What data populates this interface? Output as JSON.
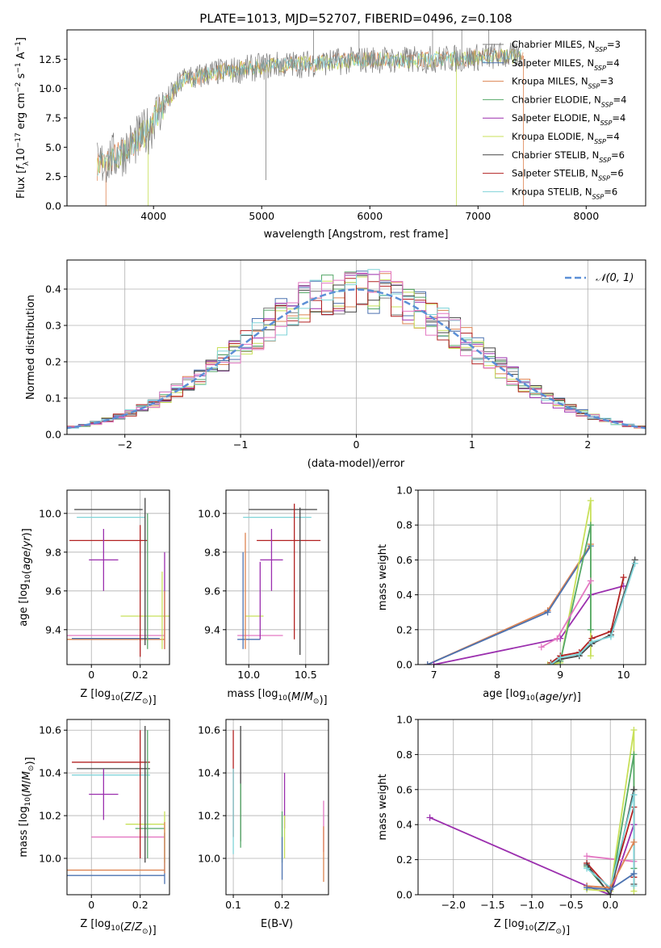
{
  "colors": {
    "chabrier_miles": "#7f7f7f",
    "salpeter_miles": "#4c72b0",
    "kroupa_miles": "#dd8452",
    "chabrier_elodie": "#55a868",
    "salpeter_elodie": "#9b2fae",
    "kroupa_elodie": "#c8e05a",
    "chabrier_stelib": "#444444",
    "salpeter_stelib": "#b22222",
    "kroupa_stelib": "#7fd3d8",
    "gaussian": "#5b8fd6",
    "pink": "#e377c2"
  },
  "chart_data": [
    {
      "type": "line",
      "title": "PLATE=1013, MJD=52707, FIBERID=0496, z=0.108",
      "xlabel": "wavelength [Angstrom, rest frame]",
      "ylabel": "Flux [fλ10⁻¹⁷ erg cm⁻² s⁻¹ A⁻¹]",
      "xlim": [
        3200,
        8550
      ],
      "ylim": [
        0,
        15
      ],
      "xticks": [
        "4000",
        "5000",
        "6000",
        "7000",
        "8000"
      ],
      "yticks": [
        "0.0",
        "2.5",
        "5.0",
        "7.5",
        "10.0",
        "12.5"
      ],
      "legend_position": "right",
      "legend": [
        {
          "label": "Chabrier MILES, N",
          "sub": "SSP",
          "suffix": "=3",
          "color": "#7f7f7f"
        },
        {
          "label": "Salpeter MILES, N",
          "sub": "SSP",
          "suffix": "=4",
          "color": "#4c72b0"
        },
        {
          "label": "Kroupa MILES, N",
          "sub": "SSP",
          "suffix": "=3",
          "color": "#dd8452"
        },
        {
          "label": "Chabrier ELODIE, N",
          "sub": "SSP",
          "suffix": "=4",
          "color": "#55a868"
        },
        {
          "label": "Salpeter ELODIE, N",
          "sub": "SSP",
          "suffix": "=4",
          "color": "#9b2fae"
        },
        {
          "label": "Kroupa ELODIE, N",
          "sub": "SSP",
          "suffix": "=4",
          "color": "#c8e05a"
        },
        {
          "label": "Chabrier STELIB, N",
          "sub": "SSP",
          "suffix": "=6",
          "color": "#444444"
        },
        {
          "label": "Salpeter STELIB, N",
          "sub": "SSP",
          "suffix": "=6",
          "color": "#b22222"
        },
        {
          "label": "Kroupa STELIB, N",
          "sub": "SSP",
          "suffix": "=6",
          "color": "#7fd3d8"
        }
      ],
      "spectrum_trend": {
        "x": [
          3500,
          3700,
          3900,
          4100,
          4300,
          4500,
          4800,
          5100,
          5400,
          5700,
          6000,
          6300,
          6600,
          6900,
          7200,
          7400
        ],
        "y": [
          3.5,
          4.5,
          6.0,
          8.0,
          10.5,
          11.3,
          11.6,
          12.0,
          12.1,
          12.3,
          12.5,
          12.4,
          12.5,
          12.6,
          12.8,
          12.8
        ]
      }
    },
    {
      "type": "histogram",
      "xlabel": "(data-model)/error",
      "ylabel": "Normed distribution",
      "xlim": [
        -2.5,
        2.5
      ],
      "ylim": [
        0,
        0.48
      ],
      "xticks": [
        "−2",
        "−1",
        "0",
        "1",
        "2"
      ],
      "yticks": [
        "0.0",
        "0.1",
        "0.2",
        "0.3",
        "0.4"
      ],
      "gaussian_label": "𝒩(0, 1)",
      "legend_position": "top-right",
      "bin_width": 0.1
    },
    {
      "type": "scatter",
      "xlabel": "Z [log10(Z/Z⊙)]",
      "ylabel": "age  [log10(age/yr)]",
      "xlim": [
        -0.1,
        0.32
      ],
      "ylim": [
        9.22,
        10.12
      ],
      "xticks": [
        "0",
        "0.2"
      ],
      "yticks": [
        "9.4",
        "9.6",
        "9.8",
        "10.0"
      ],
      "points": [
        {
          "x": 0.07,
          "y": 10.02,
          "xerr": 0.14,
          "yerr": 0.0,
          "color": "#444444"
        },
        {
          "x": 0.08,
          "y": 9.98,
          "xerr": 0.14,
          "yerr": 0.0,
          "color": "#7fd3d8"
        },
        {
          "x": 0.07,
          "y": 9.86,
          "xerr": 0.16,
          "yerr": 0.0,
          "color": "#b22222"
        },
        {
          "x": 0.05,
          "y": 9.76,
          "xerr": 0.06,
          "yerr": 0.16,
          "color": "#9b2fae"
        },
        {
          "x": 0.22,
          "y": 9.47,
          "xerr": 0.1,
          "yerr": 0.0,
          "color": "#c8e05a"
        },
        {
          "x": 0.1,
          "y": 9.37,
          "xerr": 0.2,
          "yerr": 0.0,
          "color": "#e377c2"
        },
        {
          "x": 0.1,
          "y": 9.35,
          "xerr": 0.2,
          "yerr": 0.0,
          "color": "#dd8452"
        },
        {
          "x": 0.1,
          "y": 9.355,
          "xerr": 0.18,
          "yerr": 0.0,
          "color": "#4c72b0"
        },
        {
          "x": 0.2,
          "y": 9.6,
          "xerr": 0.0,
          "yerr": 0.34,
          "color": "#b22222"
        },
        {
          "x": 0.22,
          "y": 9.7,
          "xerr": 0.0,
          "yerr": 0.38,
          "color": "#444444"
        },
        {
          "x": 0.23,
          "y": 9.65,
          "xerr": 0.0,
          "yerr": 0.35,
          "color": "#55a868"
        },
        {
          "x": 0.3,
          "y": 9.55,
          "xerr": 0.0,
          "yerr": 0.25,
          "color": "#9b2fae"
        },
        {
          "x": 0.29,
          "y": 9.5,
          "xerr": 0.0,
          "yerr": 0.2,
          "color": "#c8e05a"
        },
        {
          "x": 0.3,
          "y": 9.45,
          "xerr": 0.0,
          "yerr": 0.15,
          "color": "#dd8452"
        }
      ]
    },
    {
      "type": "scatter",
      "xlabel": "mass [log10(M/M⊙)]",
      "xlim": [
        9.8,
        10.7
      ],
      "ylim": [
        9.22,
        10.12
      ],
      "xticks": [
        "10.0",
        "10.5"
      ],
      "yticks": [
        "9.4",
        "9.6",
        "9.8",
        "10.0"
      ],
      "points": [
        {
          "x": 10.3,
          "y": 10.02,
          "xerr": 0.3,
          "yerr": 0.0,
          "color": "#444444"
        },
        {
          "x": 10.25,
          "y": 9.98,
          "xerr": 0.3,
          "yerr": 0.0,
          "color": "#7fd3d8"
        },
        {
          "x": 10.35,
          "y": 9.86,
          "xerr": 0.28,
          "yerr": 0.0,
          "color": "#b22222"
        },
        {
          "x": 10.2,
          "y": 9.76,
          "xerr": 0.1,
          "yerr": 0.16,
          "color": "#9b2fae"
        },
        {
          "x": 10.05,
          "y": 9.47,
          "xerr": 0.08,
          "yerr": 0.0,
          "color": "#c8e05a"
        },
        {
          "x": 10.1,
          "y": 9.37,
          "xerr": 0.2,
          "yerr": 0.0,
          "color": "#e377c2"
        },
        {
          "x": 10.0,
          "y": 9.35,
          "xerr": 0.1,
          "yerr": 0.0,
          "color": "#4c72b0"
        },
        {
          "x": 9.95,
          "y": 9.55,
          "xerr": 0.0,
          "yerr": 0.25,
          "color": "#4c72b0"
        },
        {
          "x": 9.97,
          "y": 9.6,
          "xerr": 0.0,
          "yerr": 0.3,
          "color": "#dd8452"
        },
        {
          "x": 10.1,
          "y": 9.55,
          "xerr": 0.0,
          "yerr": 0.2,
          "color": "#9b2fae"
        },
        {
          "x": 10.4,
          "y": 9.7,
          "xerr": 0.0,
          "yerr": 0.35,
          "color": "#b22222"
        },
        {
          "x": 10.45,
          "y": 9.65,
          "xerr": 0.0,
          "yerr": 0.38,
          "color": "#444444"
        }
      ]
    },
    {
      "type": "line",
      "xlabel": "age  [log10(age/yr)]",
      "ylabel": "mass weight",
      "xlim": [
        6.75,
        10.35
      ],
      "ylim": [
        0,
        1
      ],
      "xticks": [
        "7",
        "8",
        "9",
        "10"
      ],
      "yticks": [
        "0.0",
        "0.2",
        "0.4",
        "0.6",
        "0.8",
        "1.0"
      ],
      "series": [
        {
          "color": "#dd8452",
          "x": [
            6.9,
            8.8,
            9.48
          ],
          "y": [
            0.0,
            0.31,
            0.69
          ]
        },
        {
          "color": "#4c72b0",
          "x": [
            6.9,
            8.8,
            9.48
          ],
          "y": [
            0.0,
            0.3,
            0.68
          ]
        },
        {
          "color": "#9b2fae",
          "x": [
            7.0,
            9.0,
            9.48,
            10.0
          ],
          "y": [
            0.0,
            0.15,
            0.4,
            0.45
          ]
        },
        {
          "color": "#c8e05a",
          "x": [
            8.8,
            9.0,
            9.48,
            9.48
          ],
          "y": [
            0.0,
            0.01,
            0.94,
            0.05
          ]
        },
        {
          "color": "#55a868",
          "x": [
            8.85,
            9.0,
            9.48,
            9.48
          ],
          "y": [
            0.01,
            0.02,
            0.8,
            0.2
          ]
        },
        {
          "color": "#e377c2",
          "x": [
            8.7,
            8.95,
            9.48
          ],
          "y": [
            0.1,
            0.15,
            0.48
          ]
        },
        {
          "color": "#b22222",
          "x": [
            8.85,
            9.0,
            9.3,
            9.5,
            9.8,
            10.0
          ],
          "y": [
            0.01,
            0.05,
            0.07,
            0.15,
            0.19,
            0.5
          ]
        },
        {
          "color": "#444444",
          "x": [
            8.85,
            9.0,
            9.3,
            9.5,
            9.8,
            10.18
          ],
          "y": [
            0.0,
            0.03,
            0.05,
            0.12,
            0.17,
            0.6
          ]
        },
        {
          "color": "#7fd3d8",
          "x": [
            8.85,
            9.0,
            9.3,
            9.5,
            9.8,
            10.18
          ],
          "y": [
            0.0,
            0.04,
            0.06,
            0.13,
            0.16,
            0.58
          ]
        }
      ]
    },
    {
      "type": "scatter",
      "xlabel": "Z [log10(Z/Z⊙)]",
      "ylabel": "mass [log10(M/M⊙)]",
      "xlim": [
        -0.1,
        0.32
      ],
      "ylim": [
        9.83,
        10.65
      ],
      "xticks": [
        "0",
        "0.2"
      ],
      "yticks": [
        "10.0",
        "10.2",
        "10.4",
        "10.6"
      ],
      "points": [
        {
          "x": 0.09,
          "y": 10.42,
          "xerr": 0.15,
          "yerr": 0.0,
          "color": "#444444"
        },
        {
          "x": 0.08,
          "y": 10.45,
          "xerr": 0.16,
          "yerr": 0.0,
          "color": "#b22222"
        },
        {
          "x": 0.08,
          "y": 10.39,
          "xerr": 0.16,
          "yerr": 0.0,
          "color": "#7fd3d8"
        },
        {
          "x": 0.05,
          "y": 10.3,
          "xerr": 0.06,
          "yerr": 0.12,
          "color": "#9b2fae"
        },
        {
          "x": 0.22,
          "y": 10.16,
          "xerr": 0.08,
          "yerr": 0.0,
          "color": "#c8e05a"
        },
        {
          "x": 0.24,
          "y": 10.14,
          "xerr": 0.06,
          "yerr": 0.0,
          "color": "#55a868"
        },
        {
          "x": 0.15,
          "y": 10.1,
          "xerr": 0.15,
          "yerr": 0.0,
          "color": "#e377c2"
        },
        {
          "x": 0.1,
          "y": 9.945,
          "xerr": 0.2,
          "yerr": 0.0,
          "color": "#dd8452"
        },
        {
          "x": 0.1,
          "y": 9.92,
          "xerr": 0.2,
          "yerr": 0.0,
          "color": "#4c72b0"
        },
        {
          "x": 0.2,
          "y": 10.3,
          "xerr": 0.0,
          "yerr": 0.3,
          "color": "#b22222"
        },
        {
          "x": 0.22,
          "y": 10.3,
          "xerr": 0.0,
          "yerr": 0.32,
          "color": "#444444"
        },
        {
          "x": 0.23,
          "y": 10.3,
          "xerr": 0.0,
          "yerr": 0.3,
          "color": "#55a868"
        },
        {
          "x": 0.3,
          "y": 10.1,
          "xerr": 0.0,
          "yerr": 0.12,
          "color": "#c8e05a"
        },
        {
          "x": 0.3,
          "y": 10.0,
          "xerr": 0.0,
          "yerr": 0.12,
          "color": "#4c72b0"
        },
        {
          "x": 0.3,
          "y": 10.05,
          "xerr": 0.0,
          "yerr": 0.12,
          "color": "#dd8452"
        }
      ]
    },
    {
      "type": "scatter",
      "xlabel": "E(B-V)",
      "xlim": [
        0.085,
        0.295
      ],
      "ylim": [
        9.83,
        10.65
      ],
      "xticks": [
        "0.1",
        "0.2"
      ],
      "yticks": [
        "10.0",
        "10.2",
        "10.4",
        "10.6"
      ],
      "points": [
        {
          "x": 0.1,
          "y": 10.35,
          "xerr": 0.0,
          "yerr": 0.25,
          "color": "#b22222"
        },
        {
          "x": 0.1,
          "y": 10.22,
          "xerr": 0.0,
          "yerr": 0.2,
          "color": "#7fd3d8"
        },
        {
          "x": 0.115,
          "y": 10.35,
          "xerr": 0.0,
          "yerr": 0.27,
          "color": "#444444"
        },
        {
          "x": 0.115,
          "y": 10.2,
          "xerr": 0.0,
          "yerr": 0.15,
          "color": "#55a868"
        },
        {
          "x": 0.2,
          "y": 10.1,
          "xerr": 0.0,
          "yerr": 0.12,
          "color": "#55a868"
        },
        {
          "x": 0.2,
          "y": 10.0,
          "xerr": 0.0,
          "yerr": 0.1,
          "color": "#4c72b0"
        },
        {
          "x": 0.205,
          "y": 10.27,
          "xerr": 0.0,
          "yerr": 0.13,
          "color": "#9b2fae"
        },
        {
          "x": 0.205,
          "y": 10.1,
          "xerr": 0.0,
          "yerr": 0.1,
          "color": "#c8e05a"
        },
        {
          "x": 0.285,
          "y": 10.15,
          "xerr": 0.0,
          "yerr": 0.12,
          "color": "#e377c2"
        },
        {
          "x": 0.285,
          "y": 10.02,
          "xerr": 0.0,
          "yerr": 0.13,
          "color": "#dd8452"
        }
      ]
    },
    {
      "type": "line",
      "xlabel": "Z [log10(Z/Z⊙)]",
      "ylabel": "mass weight",
      "xlim": [
        -2.45,
        0.45
      ],
      "ylim": [
        0,
        1
      ],
      "xticks": [
        "−2.0",
        "−1.5",
        "−1.0",
        "−0.5",
        "0.0"
      ],
      "yticks": [
        "0.0",
        "0.2",
        "0.4",
        "0.6",
        "0.8",
        "1.0"
      ],
      "series": [
        {
          "color": "#9b2fae",
          "x": [
            -2.3,
            -0.3,
            0.0,
            0.3
          ],
          "y": [
            0.44,
            0.05,
            0.0,
            0.4
          ]
        },
        {
          "color": "#e377c2",
          "x": [
            -0.3,
            0.3
          ],
          "y": [
            0.22,
            0.19
          ]
        },
        {
          "color": "#c8e05a",
          "x": [
            -0.3,
            0.0,
            0.3,
            0.3
          ],
          "y": [
            0.03,
            0.02,
            0.94,
            0.02
          ]
        },
        {
          "color": "#55a868",
          "x": [
            -0.3,
            0.0,
            0.3,
            0.3
          ],
          "y": [
            0.16,
            0.0,
            0.8,
            0.15
          ]
        },
        {
          "color": "#b22222",
          "x": [
            -0.3,
            0.0,
            0.3,
            0.3
          ],
          "y": [
            0.18,
            0.03,
            0.5,
            0.1
          ]
        },
        {
          "color": "#444444",
          "x": [
            -0.3,
            0.0,
            0.3,
            0.3
          ],
          "y": [
            0.17,
            0.0,
            0.6,
            0.06
          ]
        },
        {
          "color": "#7fd3d8",
          "x": [
            -0.3,
            0.0,
            0.3,
            0.3
          ],
          "y": [
            0.15,
            0.04,
            0.57,
            0.05
          ]
        },
        {
          "color": "#dd8452",
          "x": [
            -0.3,
            0.0,
            0.3
          ],
          "y": [
            0.05,
            0.04,
            0.3
          ]
        },
        {
          "color": "#4c72b0",
          "x": [
            -0.3,
            0.0,
            0.3
          ],
          "y": [
            0.04,
            0.03,
            0.12
          ]
        }
      ]
    }
  ]
}
